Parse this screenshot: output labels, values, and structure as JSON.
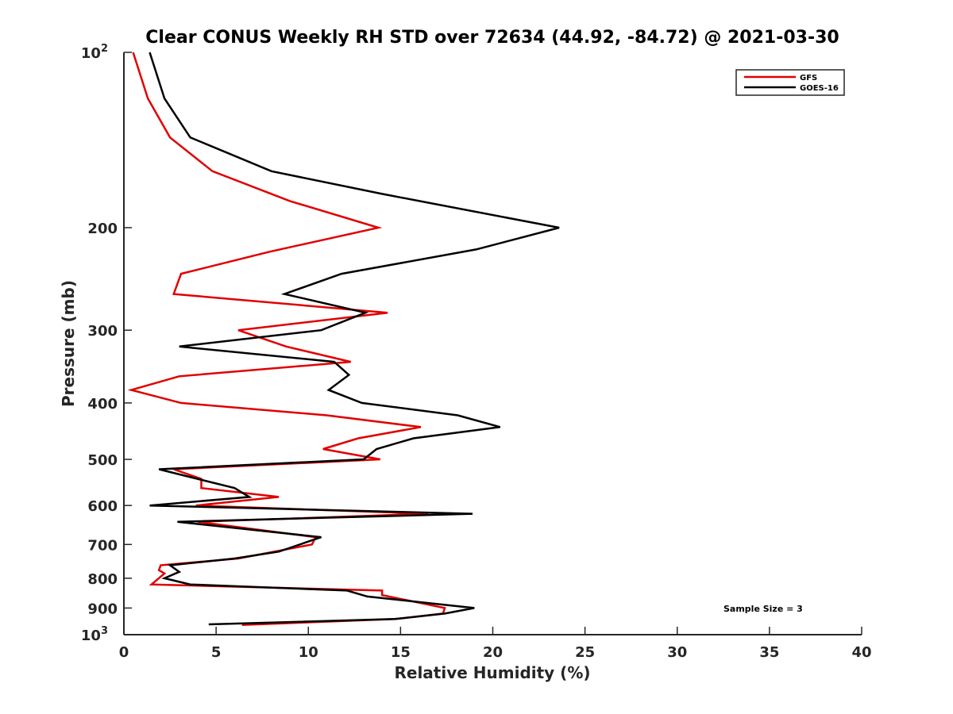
{
  "chart_data": {
    "type": "line",
    "title": "Clear CONUS Weekly RH STD over 72634 (44.92, -84.72) @ 2021-03-30",
    "xlabel": "Relative Humidity (%)",
    "ylabel": "Pressure (mb)",
    "xlim": [
      0,
      40
    ],
    "ylim": [
      100,
      1000
    ],
    "yscale": "log",
    "yreversed": true,
    "grid": false,
    "legend_position": "top-right",
    "x_ticks": [
      "0",
      "5",
      "10",
      "15",
      "20",
      "25",
      "30",
      "35",
      "40"
    ],
    "x_tick_values": [
      0,
      5,
      10,
      15,
      20,
      25,
      30,
      35,
      40
    ],
    "y_ticks": [
      {
        "value": 100,
        "label": "10",
        "sup": "2"
      },
      {
        "value": 200,
        "label": "200",
        "sup": ""
      },
      {
        "value": 300,
        "label": "300",
        "sup": ""
      },
      {
        "value": 400,
        "label": "400",
        "sup": ""
      },
      {
        "value": 500,
        "label": "500",
        "sup": ""
      },
      {
        "value": 600,
        "label": "600",
        "sup": ""
      },
      {
        "value": 700,
        "label": "700",
        "sup": ""
      },
      {
        "value": 800,
        "label": "800",
        "sup": ""
      },
      {
        "value": 900,
        "label": "900",
        "sup": ""
      },
      {
        "value": 1000,
        "label": "10",
        "sup": "3"
      }
    ],
    "annotation": "Sample Size = 3",
    "series": [
      {
        "name": "GFS",
        "color": "#e00000",
        "points": [
          [
            0.5,
            100
          ],
          [
            1.3,
            120
          ],
          [
            2.5,
            140
          ],
          [
            4.8,
            160
          ],
          [
            9.0,
            180
          ],
          [
            13.8,
            200
          ],
          [
            7.9,
            220
          ],
          [
            3.1,
            240
          ],
          [
            2.7,
            260
          ],
          [
            14.3,
            280
          ],
          [
            6.2,
            300
          ],
          [
            8.8,
            320
          ],
          [
            12.3,
            340
          ],
          [
            3.0,
            360
          ],
          [
            0.4,
            380
          ],
          [
            3.1,
            400
          ],
          [
            11.0,
            420
          ],
          [
            16.1,
            440
          ],
          [
            12.7,
            460
          ],
          [
            10.8,
            480
          ],
          [
            13.9,
            500
          ],
          [
            2.7,
            520
          ],
          [
            4.2,
            540
          ],
          [
            4.2,
            560
          ],
          [
            8.4,
            580
          ],
          [
            3.9,
            600
          ],
          [
            16.5,
            620
          ],
          [
            4.0,
            640
          ],
          [
            10.4,
            680
          ],
          [
            10.2,
            700
          ],
          [
            6.2,
            740
          ],
          [
            2.0,
            760
          ],
          [
            1.9,
            775
          ],
          [
            2.2,
            785
          ],
          [
            1.5,
            820
          ],
          [
            14.0,
            840
          ],
          [
            14.0,
            855
          ],
          [
            17.4,
            900
          ],
          [
            17.3,
            920
          ],
          [
            14.7,
            940
          ],
          [
            6.4,
            962
          ]
        ]
      },
      {
        "name": "GOES-16",
        "color": "#000000",
        "points": [
          [
            1.4,
            100
          ],
          [
            2.2,
            120
          ],
          [
            3.6,
            140
          ],
          [
            8.0,
            160
          ],
          [
            14.0,
            175
          ],
          [
            23.6,
            200
          ],
          [
            19.1,
            218
          ],
          [
            11.8,
            240
          ],
          [
            8.7,
            260
          ],
          [
            13.1,
            280
          ],
          [
            10.7,
            300
          ],
          [
            3.0,
            320
          ],
          [
            11.4,
            340
          ],
          [
            12.2,
            358
          ],
          [
            11.1,
            380
          ],
          [
            12.9,
            400
          ],
          [
            18.1,
            420
          ],
          [
            20.4,
            440
          ],
          [
            15.7,
            460
          ],
          [
            13.7,
            480
          ],
          [
            13.0,
            500
          ],
          [
            1.9,
            520
          ],
          [
            6.0,
            560
          ],
          [
            6.8,
            580
          ],
          [
            1.4,
            600
          ],
          [
            18.9,
            620
          ],
          [
            2.9,
            640
          ],
          [
            10.7,
            680
          ],
          [
            8.4,
            720
          ],
          [
            6.0,
            740
          ],
          [
            2.5,
            760
          ],
          [
            3.0,
            780
          ],
          [
            2.2,
            800
          ],
          [
            3.6,
            820
          ],
          [
            12.1,
            840
          ],
          [
            13.2,
            860
          ],
          [
            19.0,
            900
          ],
          [
            17.4,
            920
          ],
          [
            14.7,
            940
          ],
          [
            4.6,
            960
          ]
        ]
      }
    ]
  }
}
